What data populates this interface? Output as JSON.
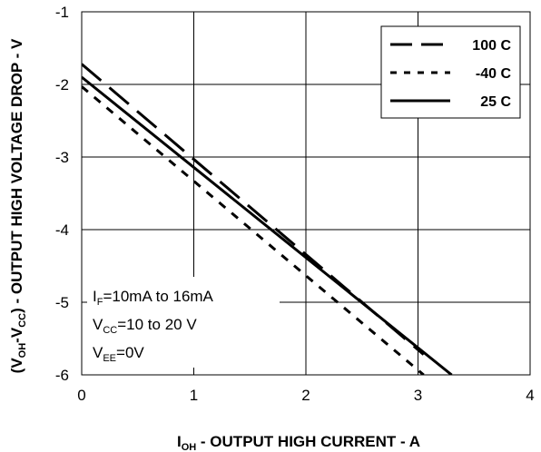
{
  "chart_data": {
    "type": "line",
    "xlabel": "I_OH - OUTPUT HIGH CURRENT - A",
    "ylabel": "(V_OH-V_CC) - OUTPUT HIGH VOLTAGE DROP - V",
    "xlim": [
      0,
      4
    ],
    "ylim": [
      -6,
      -1
    ],
    "xticks": [
      0,
      1,
      2,
      3,
      4
    ],
    "yticks": [
      -1,
      -2,
      -3,
      -4,
      -5,
      -6
    ],
    "xtick_labels": [
      "0",
      "1",
      "2",
      "3",
      "4"
    ],
    "ytick_labels": [
      "-1",
      "-2",
      "-3",
      "-4",
      "-5",
      "-6"
    ],
    "grid": true,
    "legend_position": "top-right",
    "series": [
      {
        "name": "100 C",
        "line_style": "long-dash",
        "x": [
          0,
          3.05
        ],
        "y": [
          -1.72,
          -5.72
        ]
      },
      {
        "name": "-40 C",
        "line_style": "short-dash",
        "x": [
          0,
          3.05
        ],
        "y": [
          -2.03,
          -6.0
        ]
      },
      {
        "name": "25 C",
        "line_style": "solid",
        "x": [
          0,
          3.3
        ],
        "y": [
          -1.9,
          -6.0
        ]
      }
    ],
    "annotations": [
      {
        "main": "I",
        "sub": "F",
        "rest": "=10mA to 16mA"
      },
      {
        "main": "V",
        "sub": "CC",
        "rest": "=10 to 20 V"
      },
      {
        "main": "V",
        "sub": "EE",
        "rest": "=0V"
      }
    ],
    "colors": {
      "line": "#000000",
      "grid": "#000000",
      "background": "#ffffff"
    }
  }
}
